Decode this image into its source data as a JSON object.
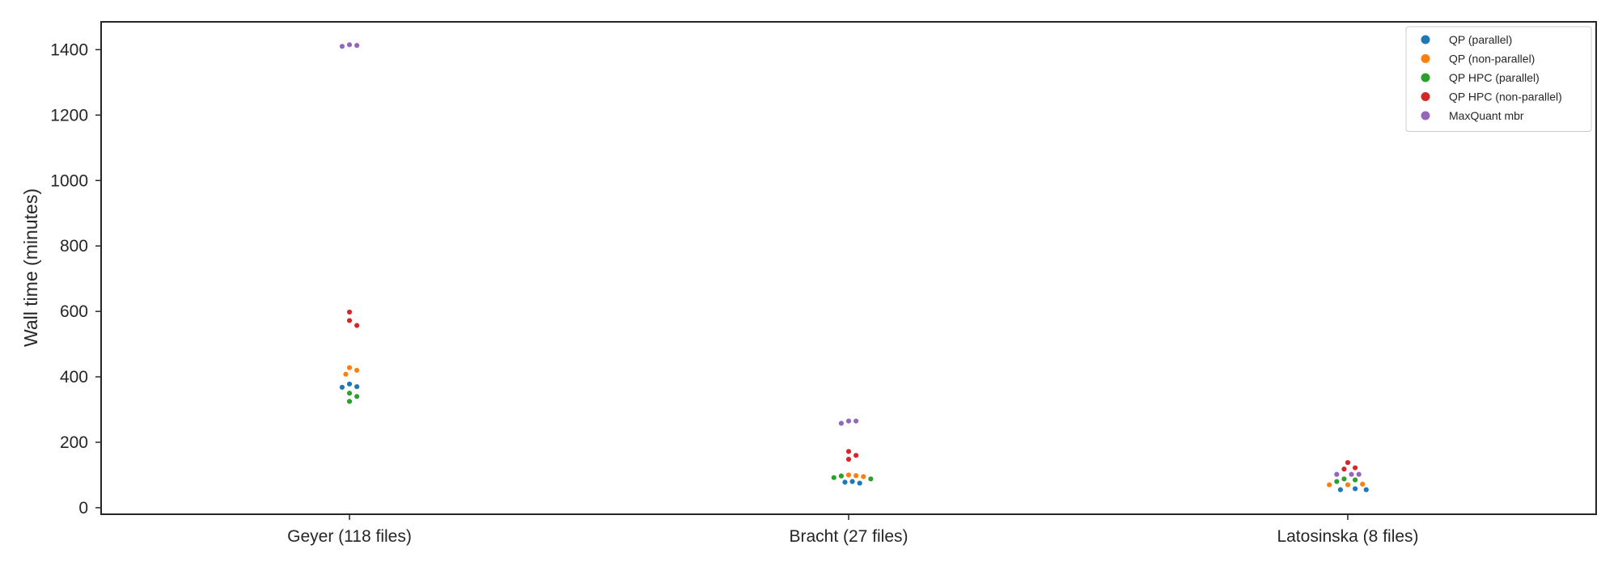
{
  "chart_data": {
    "type": "scatter",
    "title": "",
    "xlabel": "",
    "ylabel": "Wall time (minutes)",
    "categories": [
      "Geyer (118 files)",
      "Bracht (27 files)",
      "Latosinska (8 files)"
    ],
    "ylim": [
      -20,
      1485
    ],
    "yticks": [
      0,
      200,
      400,
      600,
      800,
      1000,
      1200,
      1400
    ],
    "grid": false,
    "legend_position": "top-right",
    "series": [
      {
        "name": "QP (parallel)",
        "color": "#1f77b4",
        "values": [
          [
            370,
            368,
            378
          ],
          [
            80,
            75,
            78
          ],
          [
            55,
            55,
            58
          ]
        ]
      },
      {
        "name": "QP (non-parallel)",
        "color": "#ff7f0e",
        "values": [
          [
            420,
            428,
            408
          ],
          [
            100,
            95,
            98
          ],
          [
            72,
            70,
            70
          ]
        ]
      },
      {
        "name": "QP HPC (parallel)",
        "color": "#2ca02c",
        "values": [
          [
            350,
            340,
            325
          ],
          [
            88,
            97,
            92
          ],
          [
            85,
            80,
            88
          ]
        ]
      },
      {
        "name": "QP HPC (non-parallel)",
        "color": "#d62728",
        "values": [
          [
            598,
            572,
            557
          ],
          [
            172,
            160,
            148
          ],
          [
            138,
            122,
            118
          ]
        ]
      },
      {
        "name": "MaxQuant mbr",
        "color": "#9467bd",
        "values": [
          [
            1415,
            1410,
            1413
          ],
          [
            265,
            258,
            265
          ],
          [
            102,
            102,
            102
          ]
        ]
      }
    ]
  }
}
